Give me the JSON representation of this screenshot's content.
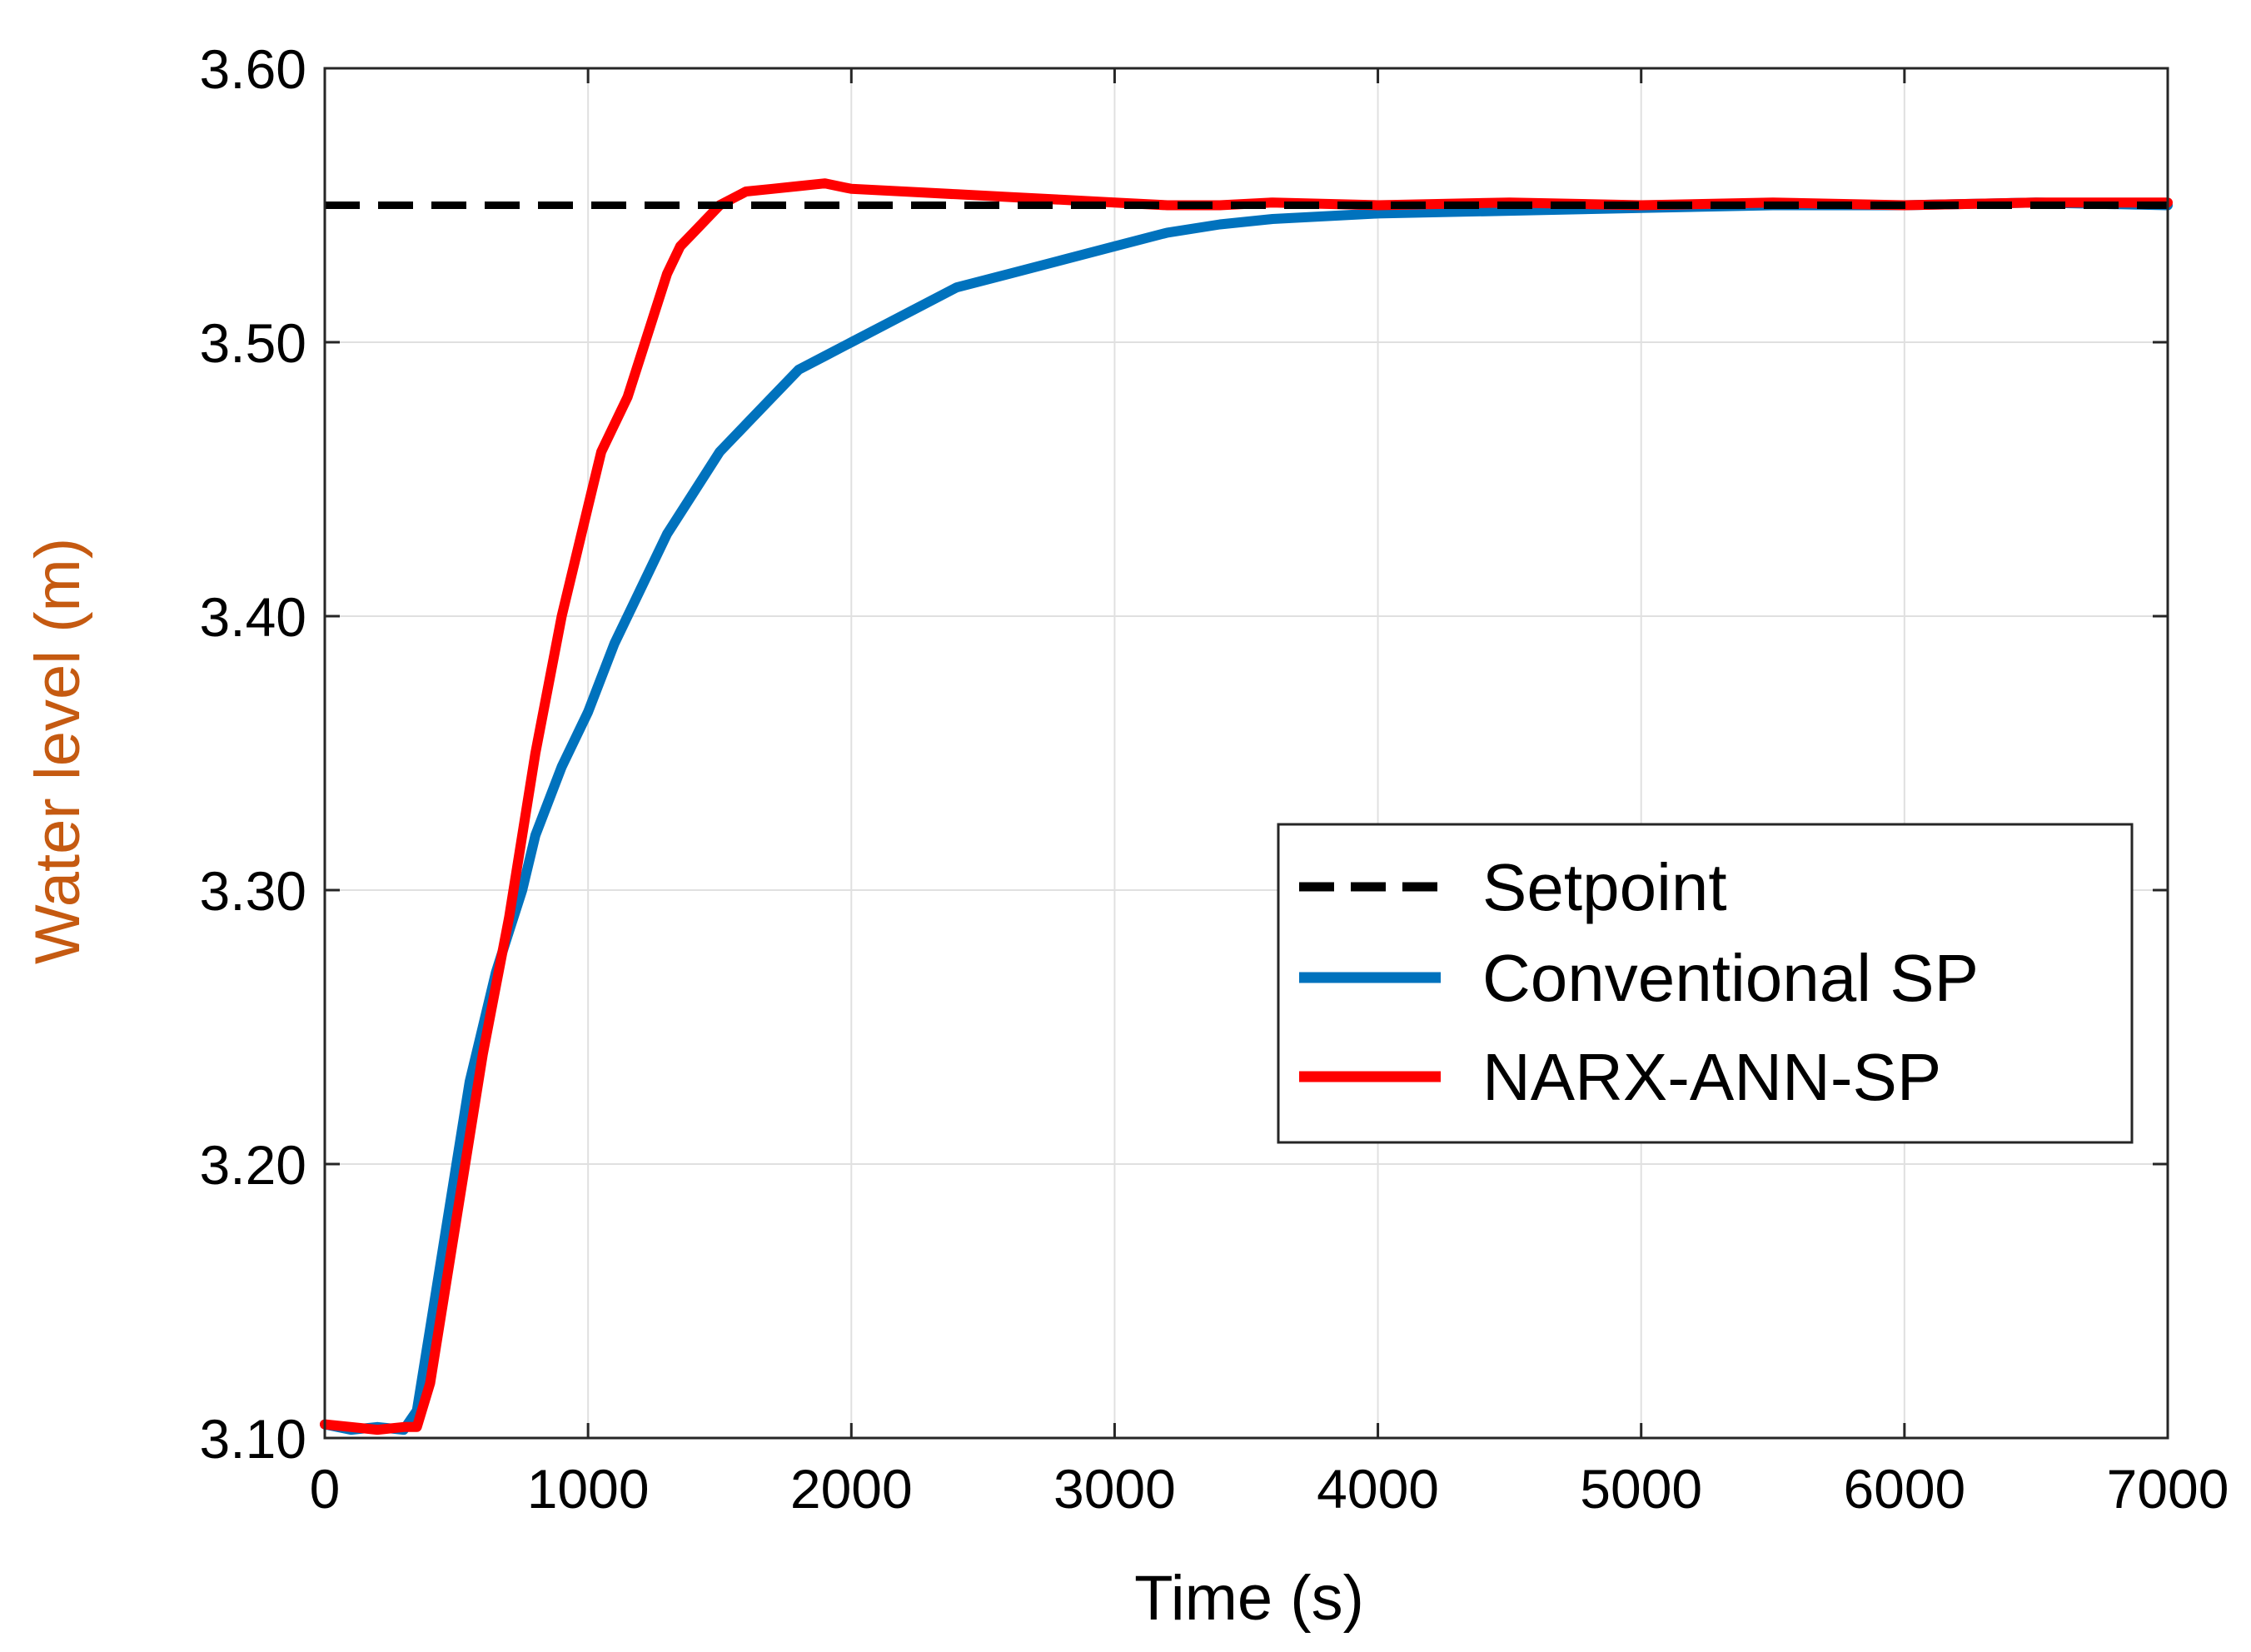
{
  "chart_data": {
    "type": "line",
    "title": "",
    "xlabel": "Time (s)",
    "ylabel": "Water level (m)",
    "xlim": [
      0,
      7000
    ],
    "ylim": [
      3.1,
      3.6
    ],
    "xticks": [
      0,
      1000,
      2000,
      3000,
      4000,
      5000,
      6000,
      7000
    ],
    "xtick_labels": [
      "0",
      "1000",
      "2000",
      "3000",
      "4000",
      "5000",
      "6000",
      "7000"
    ],
    "yticks": [
      3.1,
      3.2,
      3.3,
      3.4,
      3.5,
      3.6
    ],
    "ytick_labels": [
      "3.10",
      "3.20",
      "3.30",
      "3.40",
      "3.50",
      "3.60"
    ],
    "grid": true,
    "legend_position": "center-right",
    "series": [
      {
        "name": "Setpoint",
        "color": "#000000",
        "style": "dashed",
        "x": [
          0,
          7000
        ],
        "y": [
          3.55,
          3.55
        ]
      },
      {
        "name": "Conventional SP",
        "color": "#0072BD",
        "style": "solid",
        "x": [
          0,
          100,
          200,
          300,
          350,
          400,
          450,
          500,
          550,
          600,
          650,
          700,
          750,
          800,
          900,
          1000,
          1100,
          1200,
          1300,
          1400,
          1500,
          1600,
          1700,
          1800,
          1900,
          2000,
          2200,
          2400,
          2600,
          2800,
          3000,
          3200,
          3400,
          3600,
          4000,
          4500,
          5000,
          5500,
          6000,
          6500,
          7000
        ],
        "y": [
          3.105,
          3.103,
          3.104,
          3.103,
          3.11,
          3.14,
          3.17,
          3.2,
          3.23,
          3.25,
          3.27,
          3.285,
          3.3,
          3.32,
          3.345,
          3.365,
          3.39,
          3.41,
          3.43,
          3.445,
          3.46,
          3.47,
          3.48,
          3.49,
          3.495,
          3.5,
          3.51,
          3.52,
          3.525,
          3.53,
          3.535,
          3.54,
          3.543,
          3.545,
          3.547,
          3.548,
          3.549,
          3.55,
          3.55,
          3.551,
          3.55
        ]
      },
      {
        "name": "NARX-ANN-SP",
        "color": "#FF0000",
        "style": "solid",
        "x": [
          0,
          100,
          200,
          300,
          350,
          400,
          450,
          500,
          550,
          600,
          650,
          700,
          750,
          800,
          850,
          900,
          950,
          1000,
          1050,
          1100,
          1150,
          1200,
          1250,
          1300,
          1350,
          1400,
          1500,
          1600,
          1700,
          1800,
          1900,
          2000,
          2200,
          2400,
          2600,
          2800,
          3000,
          3200,
          3400,
          3600,
          4000,
          4500,
          5000,
          5500,
          6000,
          6500,
          7000
        ],
        "y": [
          3.105,
          3.104,
          3.103,
          3.104,
          3.104,
          3.12,
          3.15,
          3.18,
          3.21,
          3.24,
          3.265,
          3.29,
          3.32,
          3.35,
          3.375,
          3.4,
          3.42,
          3.44,
          3.46,
          3.47,
          3.48,
          3.495,
          3.51,
          3.525,
          3.535,
          3.54,
          3.55,
          3.555,
          3.556,
          3.557,
          3.558,
          3.556,
          3.555,
          3.554,
          3.553,
          3.552,
          3.551,
          3.55,
          3.55,
          3.551,
          3.55,
          3.551,
          3.55,
          3.551,
          3.55,
          3.551,
          3.551
        ]
      }
    ]
  }
}
